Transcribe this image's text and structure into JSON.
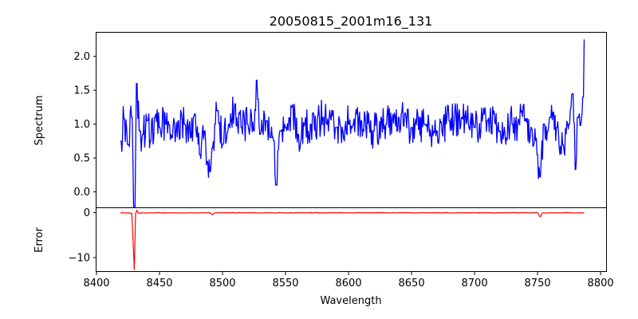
{
  "chart_data": [
    {
      "panel": "spectrum",
      "type": "line",
      "title": "20050815_2001m16_131",
      "xlabel": "",
      "ylabel": "Spectrum",
      "xlim": [
        8400,
        8805
      ],
      "ylim": [
        -0.24,
        2.35
      ],
      "yticks": [
        0.0,
        0.5,
        1.0,
        1.5,
        2.0
      ],
      "ytick_labels": [
        "0.0",
        "0.5",
        "1.0",
        "1.5",
        "2.0"
      ],
      "grid": false,
      "series": [
        {
          "color": "#0000ff",
          "x_range": [
            8419,
            8787
          ],
          "x": [
            8419,
            8422,
            8425,
            8428,
            8430,
            8432,
            8434,
            8437,
            8440,
            8443,
            8446,
            8450,
            8455,
            8460,
            8465,
            8470,
            8475,
            8478,
            8482,
            8486,
            8488,
            8490,
            8492,
            8494,
            8496,
            8500,
            8505,
            8510,
            8515,
            8520,
            8525,
            8527,
            8530,
            8535,
            8538,
            8541,
            8543,
            8546,
            8550,
            8555,
            8560,
            8570,
            8580,
            8590,
            8600,
            8610,
            8620,
            8630,
            8640,
            8650,
            8660,
            8670,
            8680,
            8690,
            8700,
            8710,
            8720,
            8730,
            8740,
            8745,
            8750,
            8752,
            8755,
            8758,
            8760,
            8765,
            8770,
            8775,
            8778,
            8780,
            8782,
            8784,
            8786,
            8787
          ],
          "y": [
            0.75,
            1.08,
            0.7,
            1.1,
            -0.22,
            1.6,
            0.9,
            0.85,
            1.05,
            0.75,
            1.1,
            0.95,
            1.0,
            0.8,
            1.05,
            1.0,
            0.8,
            1.15,
            0.55,
            0.9,
            0.45,
            0.3,
            0.65,
            1.0,
            1.2,
            0.7,
            1.0,
            1.3,
            0.95,
            1.0,
            0.9,
            1.65,
            0.85,
            1.05,
            0.8,
            0.75,
            0.1,
            0.9,
            0.95,
            1.25,
            0.85,
            1.0,
            1.1,
            0.95,
            1.0,
            1.05,
            0.9,
            1.0,
            1.1,
            0.95,
            1.0,
            0.9,
            1.05,
            1.1,
            0.95,
            1.05,
            0.9,
            1.0,
            1.05,
            0.95,
            0.55,
            0.22,
            1.0,
            0.9,
            1.1,
            0.95,
            0.7,
            1.0,
            1.45,
            0.33,
            1.1,
            0.98,
            1.4,
            2.25
          ]
        }
      ]
    },
    {
      "panel": "error",
      "type": "line",
      "xlabel": "Wavelength",
      "ylabel": "Error",
      "xlim": [
        8400,
        8805
      ],
      "ylim": [
        -13.2,
        1.0
      ],
      "xticks": [
        8400,
        8450,
        8500,
        8550,
        8600,
        8650,
        8700,
        8750,
        8800
      ],
      "xtick_labels": [
        "8400",
        "8450",
        "8500",
        "8550",
        "8600",
        "8650",
        "8700",
        "8750",
        "8800"
      ],
      "yticks": [
        0,
        -10
      ],
      "ytick_labels": [
        "0",
        "−10"
      ],
      "grid": false,
      "series": [
        {
          "color": "#ff0000",
          "x": [
            8419,
            8425,
            8428,
            8429,
            8430,
            8431,
            8432,
            8433,
            8435,
            8440,
            8450,
            8470,
            8490,
            8492,
            8494,
            8500,
            8550,
            8600,
            8650,
            8700,
            8750,
            8752,
            8754,
            8760,
            8787
          ],
          "y": [
            -0.05,
            -0.05,
            -0.1,
            -6.0,
            -12.7,
            -0.3,
            0.55,
            -0.05,
            -0.1,
            -0.05,
            -0.03,
            -0.05,
            -0.02,
            -0.45,
            -0.05,
            -0.03,
            -0.03,
            -0.02,
            -0.02,
            -0.03,
            -0.02,
            -0.95,
            -0.05,
            -0.03,
            -0.05
          ]
        }
      ]
    }
  ]
}
